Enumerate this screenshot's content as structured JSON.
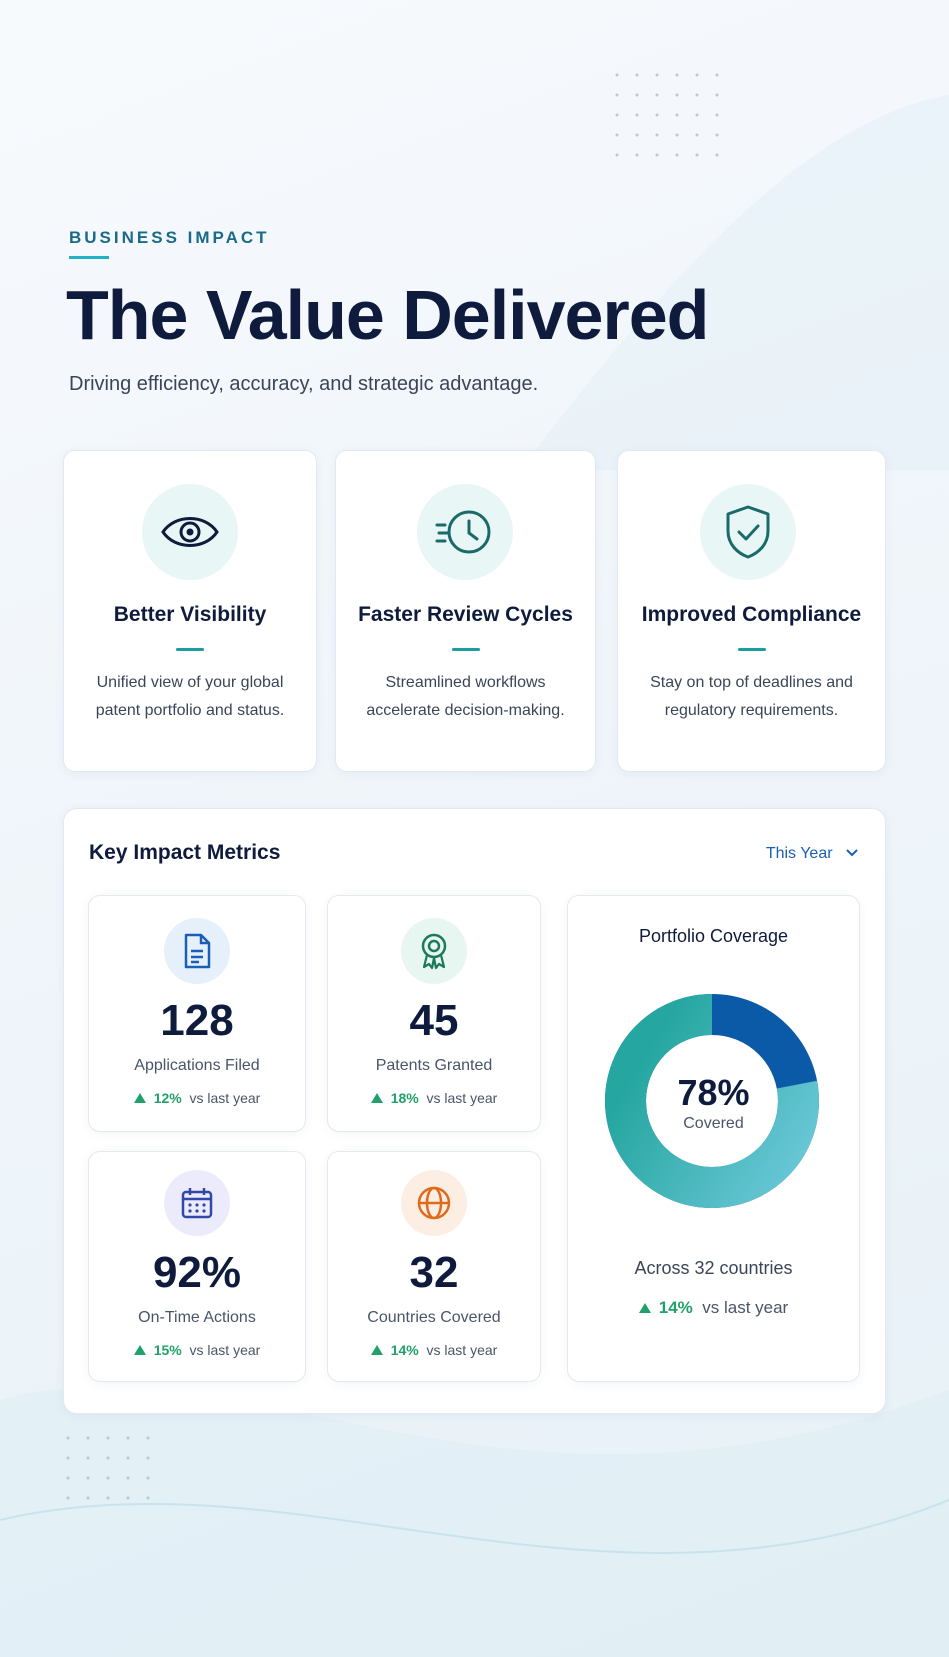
{
  "header": {
    "eyebrow": "BUSINESS IMPACT",
    "title": "The Value Delivered",
    "subtitle": "Driving efficiency, accuracy, and strategic advantage."
  },
  "features": [
    {
      "title": "Better Visibility",
      "description": "Unified view of your global patent portfolio and status."
    },
    {
      "title": "Faster Review Cycles",
      "description": "Streamlined workflows accelerate decision-making."
    },
    {
      "title": "Improved Compliance",
      "description": "Stay on top of deadlines and regulatory requirements."
    }
  ],
  "panel": {
    "title": "Key Impact Metrics",
    "period": "This Year",
    "metrics": [
      {
        "value": "128",
        "label": "Applications Filed",
        "change": "12%",
        "comparison": "vs last year"
      },
      {
        "value": "45",
        "label": "Patents Granted",
        "change": "18%",
        "comparison": "vs last year"
      },
      {
        "value": "92%",
        "label": "On-Time Actions",
        "change": "15%",
        "comparison": "vs last year"
      },
      {
        "value": "32",
        "label": "Countries Covered",
        "change": "14%",
        "comparison": "vs last year"
      }
    ],
    "donut": {
      "title": "Portfolio Coverage",
      "value": 78,
      "value_label": "78%",
      "label": "Covered",
      "caption": "Across 32 countries",
      "change": "14%",
      "comparison": "vs last year"
    }
  }
}
